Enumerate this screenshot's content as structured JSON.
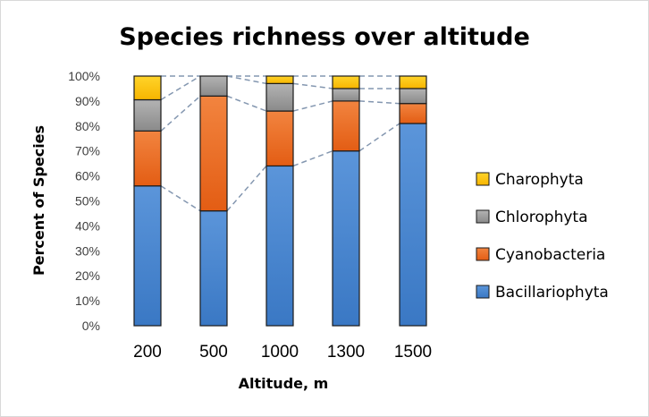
{
  "chart_data": {
    "type": "bar",
    "stacked": true,
    "title": "Species richness over altitude",
    "xlabel": "Altitude, m",
    "ylabel": "Percent of Species",
    "categories": [
      "200",
      "500",
      "1000",
      "1300",
      "1500"
    ],
    "yticks": [
      "0%",
      "10%",
      "20%",
      "30%",
      "40%",
      "50%",
      "60%",
      "70%",
      "80%",
      "90%",
      "100%"
    ],
    "ylim": [
      0,
      100
    ],
    "grid": false,
    "legend_position": "right",
    "series_lines": "dashed",
    "series": [
      {
        "name": "Bacillariophyta",
        "color": "#4a86d0",
        "values": [
          56,
          46,
          64,
          70,
          81
        ]
      },
      {
        "name": "Cyanobacteria",
        "color": "#ec6a22",
        "values": [
          22,
          46,
          22,
          20,
          8
        ]
      },
      {
        "name": "Chlorophyta",
        "color": "#9b9b9b",
        "values": [
          12.5,
          8,
          11,
          5,
          6
        ]
      },
      {
        "name": "Charophyta",
        "color": "#fbc40c",
        "values": [
          9.5,
          0,
          3,
          5,
          5
        ]
      }
    ]
  }
}
